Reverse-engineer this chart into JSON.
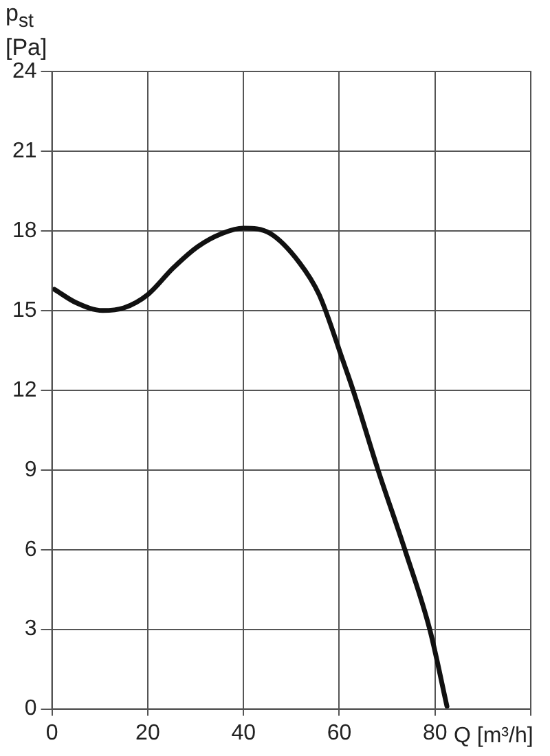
{
  "chart_data": {
    "type": "line",
    "xlabel": "Q [m³/h]",
    "ylabel": "p$_{st}$ [Pa]",
    "series": [
      {
        "color": "#111111",
        "x": [
          0.5,
          5,
          10.6,
          15,
          20,
          25.3,
          30.4,
          35.5,
          40,
          45.6,
          51.7,
          55.8,
          60.8,
          62.9,
          68.1,
          73.7,
          78.9,
          82.5
        ],
        "values": [
          15.8,
          15.3,
          15.0,
          15.1,
          15.6,
          16.6,
          17.4,
          17.9,
          18.1,
          17.9,
          16.8,
          15.6,
          13.1,
          12.0,
          9.0,
          6.0,
          3.0,
          0.1
        ]
      }
    ],
    "xlim": [
      0,
      100
    ],
    "xticks": [
      0,
      20,
      40,
      60,
      80,
      {
        "value": 100,
        "label": null
      }
    ],
    "ylim": [
      0,
      24
    ],
    "yticks": [
      0,
      3,
      6,
      9,
      12,
      15,
      18,
      21,
      24
    ],
    "grid": true,
    "legend": false,
    "marker": "none",
    "line_style": "solid"
  }
}
